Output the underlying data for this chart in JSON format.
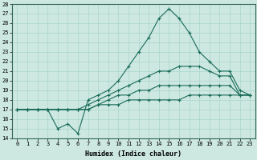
{
  "xlabel": "Humidex (Indice chaleur)",
  "xlim": [
    -0.5,
    23.5
  ],
  "ylim": [
    14,
    28
  ],
  "xticks": [
    0,
    1,
    2,
    3,
    4,
    5,
    6,
    7,
    8,
    9,
    10,
    11,
    12,
    13,
    14,
    15,
    16,
    17,
    18,
    19,
    20,
    21,
    22,
    23
  ],
  "yticks": [
    14,
    15,
    16,
    17,
    18,
    19,
    20,
    21,
    22,
    23,
    24,
    25,
    26,
    27,
    28
  ],
  "bg_color": "#cce8e0",
  "line_color": "#1a6b5a",
  "grid_color": "#aad4cc",
  "lines": [
    [
      17.0,
      17.0,
      17.0,
      17.0,
      15.0,
      15.5,
      14.5,
      18.0,
      18.5,
      19.0,
      20.0,
      21.5,
      23.0,
      24.5,
      26.5,
      27.5,
      26.5,
      25.0,
      23.0,
      22.0,
      21.0,
      21.0,
      19.0,
      18.5
    ],
    [
      17.0,
      17.0,
      17.0,
      17.0,
      17.0,
      17.0,
      17.0,
      17.5,
      18.0,
      18.5,
      19.0,
      19.5,
      20.0,
      20.5,
      21.0,
      21.0,
      21.5,
      21.5,
      21.5,
      21.0,
      20.5,
      20.5,
      18.5,
      18.5
    ],
    [
      17.0,
      17.0,
      17.0,
      17.0,
      17.0,
      17.0,
      17.0,
      17.0,
      17.5,
      18.0,
      18.5,
      18.5,
      19.0,
      19.0,
      19.5,
      19.5,
      19.5,
      19.5,
      19.5,
      19.5,
      19.5,
      19.5,
      18.5,
      18.5
    ],
    [
      17.0,
      17.0,
      17.0,
      17.0,
      17.0,
      17.0,
      17.0,
      17.0,
      17.5,
      17.5,
      17.5,
      18.0,
      18.0,
      18.0,
      18.0,
      18.0,
      18.0,
      18.5,
      18.5,
      18.5,
      18.5,
      18.5,
      18.5,
      18.5
    ]
  ]
}
